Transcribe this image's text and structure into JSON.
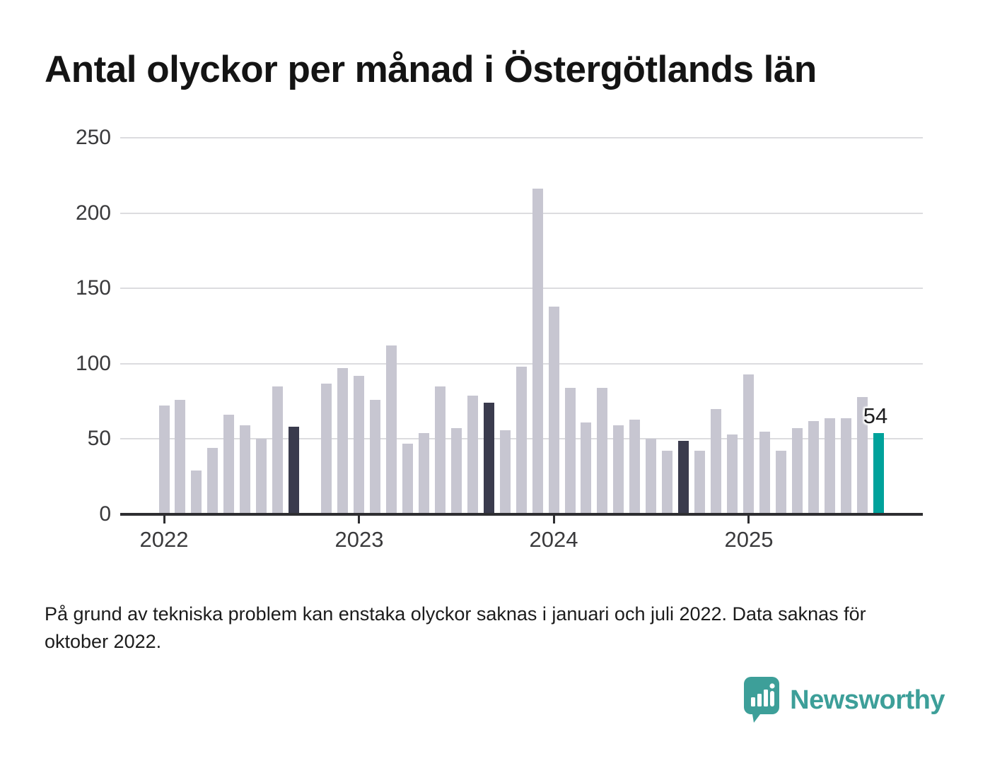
{
  "title": "Antal olyckor per månad i Östergötlands län",
  "chart_data": {
    "type": "bar",
    "title": "Antal olyckor per månad i Östergötlands län",
    "xlabel": "",
    "ylabel": "",
    "ylim": [
      0,
      250
    ],
    "yticks": [
      0,
      50,
      100,
      150,
      200,
      250
    ],
    "grid": "horizontal",
    "legend": "none",
    "x_year_ticks": [
      {
        "label": "2022",
        "slot": 0
      },
      {
        "label": "2023",
        "slot": 12
      },
      {
        "label": "2024",
        "slot": 24
      },
      {
        "label": "2025",
        "slot": 36
      }
    ],
    "missing_months": [
      "2022-10"
    ],
    "highlighted_last_value_label": "54",
    "points": [
      {
        "month": "2022-01",
        "value": 72,
        "role": "default"
      },
      {
        "month": "2022-02",
        "value": 76,
        "role": "default"
      },
      {
        "month": "2022-03",
        "value": 29,
        "role": "default"
      },
      {
        "month": "2022-04",
        "value": 44,
        "role": "default"
      },
      {
        "month": "2022-05",
        "value": 66,
        "role": "default"
      },
      {
        "month": "2022-06",
        "value": 59,
        "role": "default"
      },
      {
        "month": "2022-07",
        "value": 50,
        "role": "default"
      },
      {
        "month": "2022-08",
        "value": 85,
        "role": "default"
      },
      {
        "month": "2022-09",
        "value": 58,
        "role": "dark"
      },
      {
        "month": "2022-10",
        "value": null,
        "role": "missing"
      },
      {
        "month": "2022-11",
        "value": 87,
        "role": "default"
      },
      {
        "month": "2022-12",
        "value": 97,
        "role": "default"
      },
      {
        "month": "2023-01",
        "value": 92,
        "role": "default"
      },
      {
        "month": "2023-02",
        "value": 76,
        "role": "default"
      },
      {
        "month": "2023-03",
        "value": 112,
        "role": "default"
      },
      {
        "month": "2023-04",
        "value": 47,
        "role": "default"
      },
      {
        "month": "2023-05",
        "value": 54,
        "role": "default"
      },
      {
        "month": "2023-06",
        "value": 85,
        "role": "default"
      },
      {
        "month": "2023-07",
        "value": 57,
        "role": "default"
      },
      {
        "month": "2023-08",
        "value": 79,
        "role": "default"
      },
      {
        "month": "2023-09",
        "value": 74,
        "role": "dark"
      },
      {
        "month": "2023-10",
        "value": 56,
        "role": "default"
      },
      {
        "month": "2023-11",
        "value": 98,
        "role": "default"
      },
      {
        "month": "2023-12",
        "value": 216,
        "role": "default"
      },
      {
        "month": "2024-01",
        "value": 138,
        "role": "default"
      },
      {
        "month": "2024-02",
        "value": 84,
        "role": "default"
      },
      {
        "month": "2024-03",
        "value": 61,
        "role": "default"
      },
      {
        "month": "2024-04",
        "value": 84,
        "role": "default"
      },
      {
        "month": "2024-05",
        "value": 59,
        "role": "default"
      },
      {
        "month": "2024-06",
        "value": 63,
        "role": "default"
      },
      {
        "month": "2024-07",
        "value": 50,
        "role": "default"
      },
      {
        "month": "2024-08",
        "value": 42,
        "role": "default"
      },
      {
        "month": "2024-09",
        "value": 49,
        "role": "dark"
      },
      {
        "month": "2024-10",
        "value": 42,
        "role": "default"
      },
      {
        "month": "2024-11",
        "value": 70,
        "role": "default"
      },
      {
        "month": "2024-12",
        "value": 53,
        "role": "default"
      },
      {
        "month": "2025-01",
        "value": 93,
        "role": "default"
      },
      {
        "month": "2025-02",
        "value": 55,
        "role": "default"
      },
      {
        "month": "2025-03",
        "value": 42,
        "role": "default"
      },
      {
        "month": "2025-04",
        "value": 57,
        "role": "default"
      },
      {
        "month": "2025-05",
        "value": 62,
        "role": "default"
      },
      {
        "month": "2025-06",
        "value": 64,
        "role": "default"
      },
      {
        "month": "2025-07",
        "value": 64,
        "role": "default"
      },
      {
        "month": "2025-08",
        "value": 78,
        "role": "default"
      },
      {
        "month": "2025-09",
        "value": 54,
        "role": "highlight",
        "data_label": "54"
      }
    ]
  },
  "colors": {
    "bar_default": "#c7c6d1",
    "bar_dark": "#3a3b4d",
    "bar_highlight": "#00a29b",
    "gridline": "#dcdcdf",
    "axis": "#2e2e31",
    "tick_text": "#3a3a3c",
    "logo_teal": "#3d9f99"
  },
  "footnote": {
    "line1": "På grund av tekniska problem kan enstaka olyckor saknas i januari och juli 2022. Data saknas för",
    "line2": "oktober 2022."
  },
  "logo": {
    "text": "Newsworthy"
  }
}
